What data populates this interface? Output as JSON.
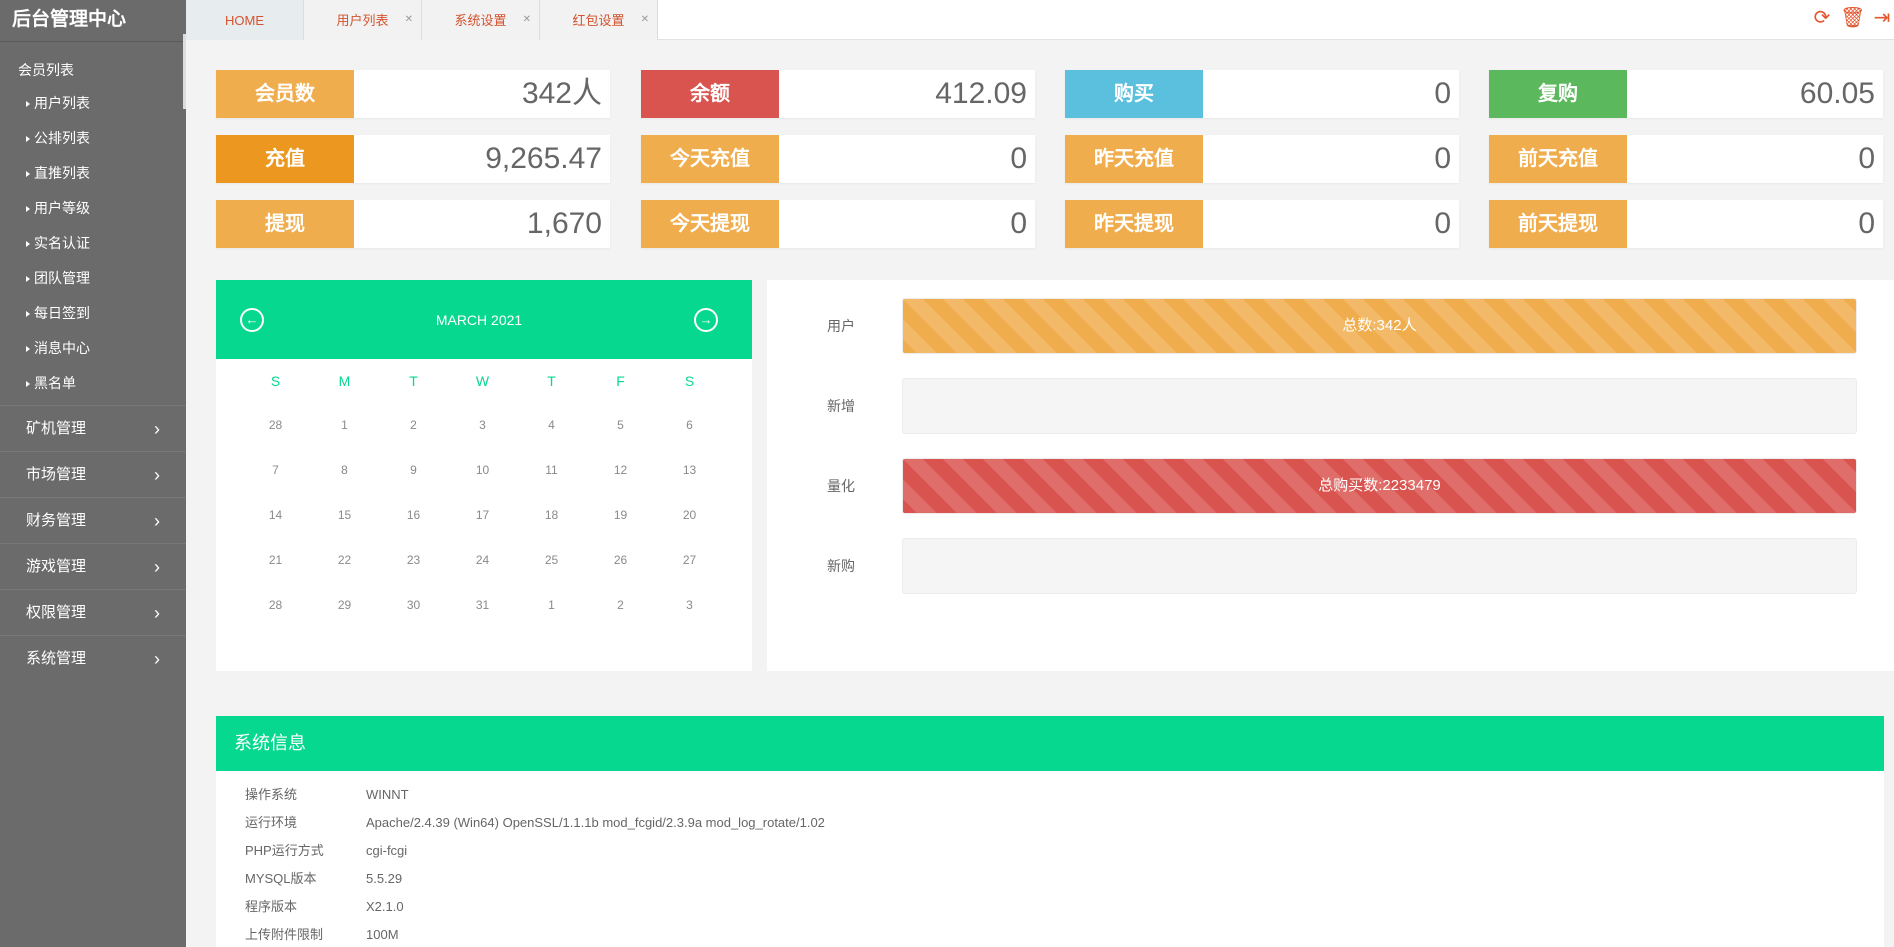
{
  "sidebar": {
    "title": "后台管理中心",
    "group_title": "会员列表",
    "sub_items": [
      "用户列表",
      "公排列表",
      "直推列表",
      "用户等级",
      "实名认证",
      "团队管理",
      "每日签到",
      "消息中心",
      "黑名单"
    ],
    "menus": [
      "矿机管理",
      "市场管理",
      "财务管理",
      "游戏管理",
      "权限管理",
      "系统管理"
    ]
  },
  "tabs": [
    {
      "label": "HOME"
    },
    {
      "label": "用户列表"
    },
    {
      "label": "系统设置"
    },
    {
      "label": "红包设置"
    }
  ],
  "toolbar": {
    "refresh_icon": "refresh-icon",
    "trash_icon": "trash-icon",
    "logout_icon": "logout-icon",
    "accent": "#e4572e"
  },
  "stats": [
    {
      "label": "会员数",
      "value": "342人",
      "color": "#f0ad4e"
    },
    {
      "label": "余额",
      "value": "412.09",
      "color": "#d9534f"
    },
    {
      "label": "购买",
      "value": "0",
      "color": "#5bc0de"
    },
    {
      "label": "复购",
      "value": "60.05",
      "color": "#5cb85c"
    },
    {
      "label": "充值",
      "value": "9,265.47",
      "color": "#ec971f"
    },
    {
      "label": "今天充值",
      "value": "0",
      "color": "#f0ad4e"
    },
    {
      "label": "昨天充值",
      "value": "0",
      "color": "#f0ad4e"
    },
    {
      "label": "前天充值",
      "value": "0",
      "color": "#f0ad4e"
    },
    {
      "label": "提现",
      "value": "1,670",
      "color": "#f0ad4e"
    },
    {
      "label": "今天提现",
      "value": "0",
      "color": "#f0ad4e"
    },
    {
      "label": "昨天提现",
      "value": "0",
      "color": "#f0ad4e"
    },
    {
      "label": "前天提现",
      "value": "0",
      "color": "#f0ad4e"
    }
  ],
  "calendar": {
    "title": "MARCH 2021",
    "dow": [
      "S",
      "M",
      "T",
      "W",
      "T",
      "F",
      "S"
    ],
    "days": [
      "28",
      "1",
      "2",
      "3",
      "4",
      "5",
      "6",
      "7",
      "8",
      "9",
      "10",
      "11",
      "12",
      "13",
      "14",
      "15",
      "16",
      "17",
      "18",
      "19",
      "20",
      "21",
      "22",
      "23",
      "24",
      "25",
      "26",
      "27",
      "28",
      "29",
      "30",
      "31",
      "1",
      "2",
      "3"
    ]
  },
  "progress": [
    {
      "label": "用户",
      "text": "总数:342人",
      "fill": 1.0,
      "color": "#f0ad4e"
    },
    {
      "label": "新增",
      "text": "",
      "fill": 0,
      "color": "#f0ad4e"
    },
    {
      "label": "量化",
      "text": "总购买数:2233479",
      "fill": 1.0,
      "color": "#d9534f"
    },
    {
      "label": "新购",
      "text": "",
      "fill": 0,
      "color": "#d9534f"
    }
  ],
  "sysinfo": {
    "title": "系统信息",
    "rows": [
      {
        "k": "操作系统",
        "v": "WINNT"
      },
      {
        "k": "运行环境",
        "v": "Apache/2.4.39 (Win64) OpenSSL/1.1.1b mod_fcgid/2.3.9a mod_log_rotate/1.02"
      },
      {
        "k": "PHP运行方式",
        "v": "cgi-fcgi"
      },
      {
        "k": "MYSQL版本",
        "v": "5.5.29"
      },
      {
        "k": "程序版本",
        "v": "X2.1.0"
      },
      {
        "k": "上传附件限制",
        "v": "100M"
      }
    ]
  }
}
